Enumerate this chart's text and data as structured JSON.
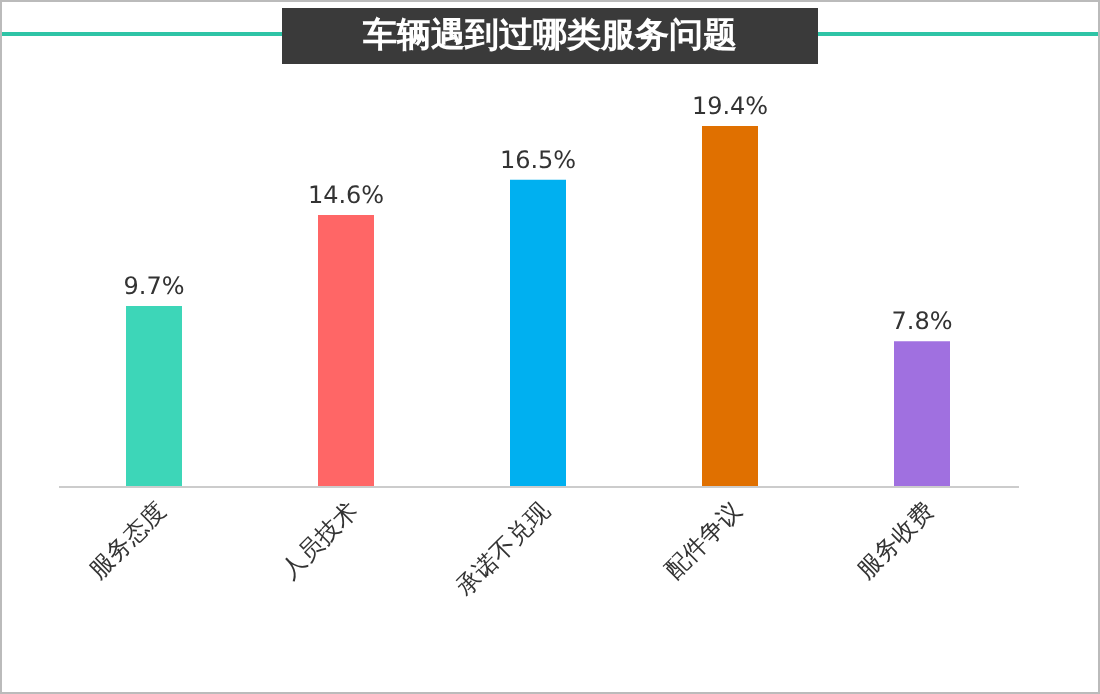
{
  "chart_data": {
    "type": "bar",
    "title": "车辆遇到过哪类服务问题",
    "categories": [
      "服务态度",
      "人员技术",
      "承诺不兑现",
      "配件争议",
      "服务收费"
    ],
    "values": [
      9.7,
      14.6,
      16.5,
      19.4,
      7.8
    ],
    "value_labels": [
      "9.7%",
      "14.6%",
      "16.5%",
      "19.4%",
      "7.8%"
    ],
    "colors": [
      "#3dd6b8",
      "#ff6666",
      "#00b0f0",
      "#e07000",
      "#a070e0"
    ]
  }
}
